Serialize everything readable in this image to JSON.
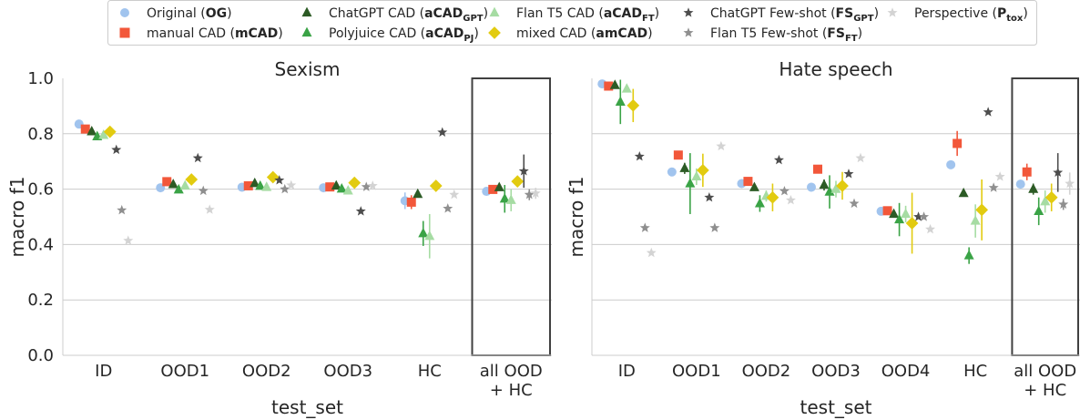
{
  "legend": {
    "entries": [
      {
        "id": "OG",
        "text": "Original (",
        "bold": "OG",
        "sub": "",
        "suffix": ")",
        "color": "#a1c4ee",
        "marker": "circle"
      },
      {
        "id": "mCAD",
        "text": "manual CAD (",
        "bold": "mCAD",
        "sub": "",
        "suffix": ")",
        "color": "#f2573a",
        "marker": "square"
      },
      {
        "id": "aCADgpt",
        "text": "ChatGPT CAD (",
        "bold": "aCAD",
        "sub": "GPT",
        "suffix": ")",
        "color": "#2c5b25",
        "marker": "triangle"
      },
      {
        "id": "aCADpj",
        "text": "Polyjuice CAD (",
        "bold": "aCAD",
        "sub": "PJ",
        "suffix": ")",
        "color": "#3aa346",
        "marker": "triangle"
      },
      {
        "id": "aCADft",
        "text": "Flan T5 CAD (",
        "bold": "aCAD",
        "sub": "FT",
        "suffix": ")",
        "color": "#a6dca3",
        "marker": "triangle"
      },
      {
        "id": "amCAD",
        "text": "mixed CAD (",
        "bold": "amCAD",
        "sub": "",
        "suffix": ")",
        "color": "#e2cb10",
        "marker": "diamond"
      },
      {
        "id": "FSgpt",
        "text": "ChatGPT Few-shot (",
        "bold": "FS",
        "sub": "GPT",
        "suffix": ")",
        "color": "#4d4d4d",
        "marker": "star"
      },
      {
        "id": "FSft",
        "text": "Flan T5 Few-shot (",
        "bold": "FS",
        "sub": "FT",
        "suffix": ")",
        "color": "#8f8f8f",
        "marker": "star"
      },
      {
        "id": "Ptox",
        "text": "Perspective (",
        "bold": "P",
        "sub": "tox",
        "suffix": ")",
        "color": "#d3d3d3",
        "marker": "star"
      }
    ]
  },
  "chart_data": [
    {
      "type": "scatter",
      "title": "Sexism",
      "xlabel": "test_set",
      "ylabel": "macro f1",
      "ylim": [
        0,
        1.0
      ],
      "yticks": [
        "0.0",
        "0.2",
        "0.4",
        "0.6",
        "0.8",
        "1.0"
      ],
      "categories": [
        [
          "ID"
        ],
        [
          "OOD1"
        ],
        [
          "OOD2"
        ],
        [
          "OOD3"
        ],
        [
          "HC"
        ],
        [
          "all OOD",
          "+ HC"
        ]
      ],
      "highlight_last_category": true,
      "grid": "horizontal",
      "series": [
        {
          "id": "OG",
          "values": [
            0.835,
            0.605,
            0.607,
            0.605,
            0.558,
            0.592
          ],
          "err": [
            0,
            0,
            0,
            0,
            0.03,
            0
          ]
        },
        {
          "id": "mCAD",
          "values": [
            0.817,
            0.627,
            0.612,
            0.608,
            0.553,
            0.599
          ],
          "err": [
            0,
            0,
            0,
            0,
            0.025,
            0
          ]
        },
        {
          "id": "aCADgpt",
          "values": [
            0.808,
            0.617,
            0.621,
            0.612,
            0.582,
            0.606
          ],
          "err": [
            0,
            0,
            0,
            0,
            0,
            0
          ]
        },
        {
          "id": "aCADpj",
          "values": [
            0.79,
            0.598,
            0.611,
            0.601,
            0.44,
            0.565
          ],
          "err": [
            0,
            0,
            0,
            0,
            0.045,
            0.05
          ]
        },
        {
          "id": "aCADft",
          "values": [
            0.795,
            0.612,
            0.607,
            0.594,
            0.43,
            0.56
          ],
          "err": [
            0,
            0,
            0,
            0,
            0.08,
            0.04
          ]
        },
        {
          "id": "amCAD",
          "values": [
            0.807,
            0.635,
            0.643,
            0.623,
            0.612,
            0.628
          ],
          "err": [
            0,
            0,
            0,
            0,
            0,
            0
          ]
        },
        {
          "id": "FSgpt",
          "values": [
            0.742,
            0.712,
            0.632,
            0.52,
            0.805,
            0.665
          ],
          "err": [
            0,
            0,
            0,
            0,
            0,
            0.06
          ]
        },
        {
          "id": "FSft",
          "values": [
            0.524,
            0.594,
            0.6,
            0.608,
            0.53,
            0.58
          ],
          "err": [
            0,
            0,
            0,
            0,
            0,
            0.02
          ]
        },
        {
          "id": "Ptox",
          "values": [
            0.414,
            0.526,
            0.614,
            0.612,
            0.58,
            0.585
          ],
          "err": [
            0,
            0,
            0,
            0,
            0,
            0.02
          ]
        }
      ]
    },
    {
      "type": "scatter",
      "title": "Hate speech",
      "xlabel": "test_set",
      "ylabel": "macro f1",
      "ylim": [
        0,
        1.0
      ],
      "yticks": [],
      "categories": [
        [
          "ID"
        ],
        [
          "OOD1"
        ],
        [
          "OOD2"
        ],
        [
          "OOD3"
        ],
        [
          "OOD4"
        ],
        [
          "HC"
        ],
        [
          "all OOD",
          "+ HC"
        ]
      ],
      "highlight_last_category": true,
      "grid": "horizontal",
      "series": [
        {
          "id": "OG",
          "values": [
            0.98,
            0.662,
            0.62,
            0.607,
            0.52,
            0.688,
            0.618
          ],
          "err": [
            0,
            0,
            0,
            0,
            0,
            0,
            0
          ]
        },
        {
          "id": "mCAD",
          "values": [
            0.972,
            0.723,
            0.628,
            0.672,
            0.522,
            0.765,
            0.662
          ],
          "err": [
            0,
            0,
            0,
            0,
            0,
            0.045,
            0.03
          ]
        },
        {
          "id": "aCADgpt",
          "values": [
            0.975,
            0.675,
            0.606,
            0.615,
            0.51,
            0.585,
            0.6
          ],
          "err": [
            0.01,
            0.02,
            0,
            0.02,
            0,
            0,
            0.02
          ]
        },
        {
          "id": "aCADpj",
          "values": [
            0.915,
            0.62,
            0.548,
            0.59,
            0.49,
            0.36,
            0.52
          ],
          "err": [
            0.08,
            0.11,
            0.03,
            0.06,
            0.06,
            0.03,
            0.05
          ]
        },
        {
          "id": "aCADft",
          "values": [
            0.962,
            0.645,
            0.575,
            0.6,
            0.51,
            0.485,
            0.555
          ],
          "err": [
            0.01,
            0.03,
            0.02,
            0.03,
            0.03,
            0.06,
            0.04
          ]
        },
        {
          "id": "amCAD",
          "values": [
            0.902,
            0.668,
            0.57,
            0.612,
            0.477,
            0.525,
            0.57
          ],
          "err": [
            0.06,
            0.06,
            0.05,
            0.05,
            0.11,
            0.11,
            0.05
          ]
        },
        {
          "id": "FSgpt",
          "values": [
            0.718,
            0.57,
            0.705,
            0.655,
            0.5,
            0.878,
            0.66
          ],
          "err": [
            0,
            0,
            0,
            0,
            0,
            0,
            0.07
          ]
        },
        {
          "id": "FSft",
          "values": [
            0.46,
            0.46,
            0.593,
            0.548,
            0.5,
            0.605,
            0.545
          ],
          "err": [
            0,
            0,
            0,
            0,
            0,
            0,
            0.02
          ]
        },
        {
          "id": "Ptox",
          "values": [
            0.37,
            0.755,
            0.56,
            0.712,
            0.455,
            0.645,
            0.62
          ],
          "err": [
            0,
            0,
            0,
            0,
            0,
            0,
            0.04
          ]
        }
      ]
    }
  ]
}
